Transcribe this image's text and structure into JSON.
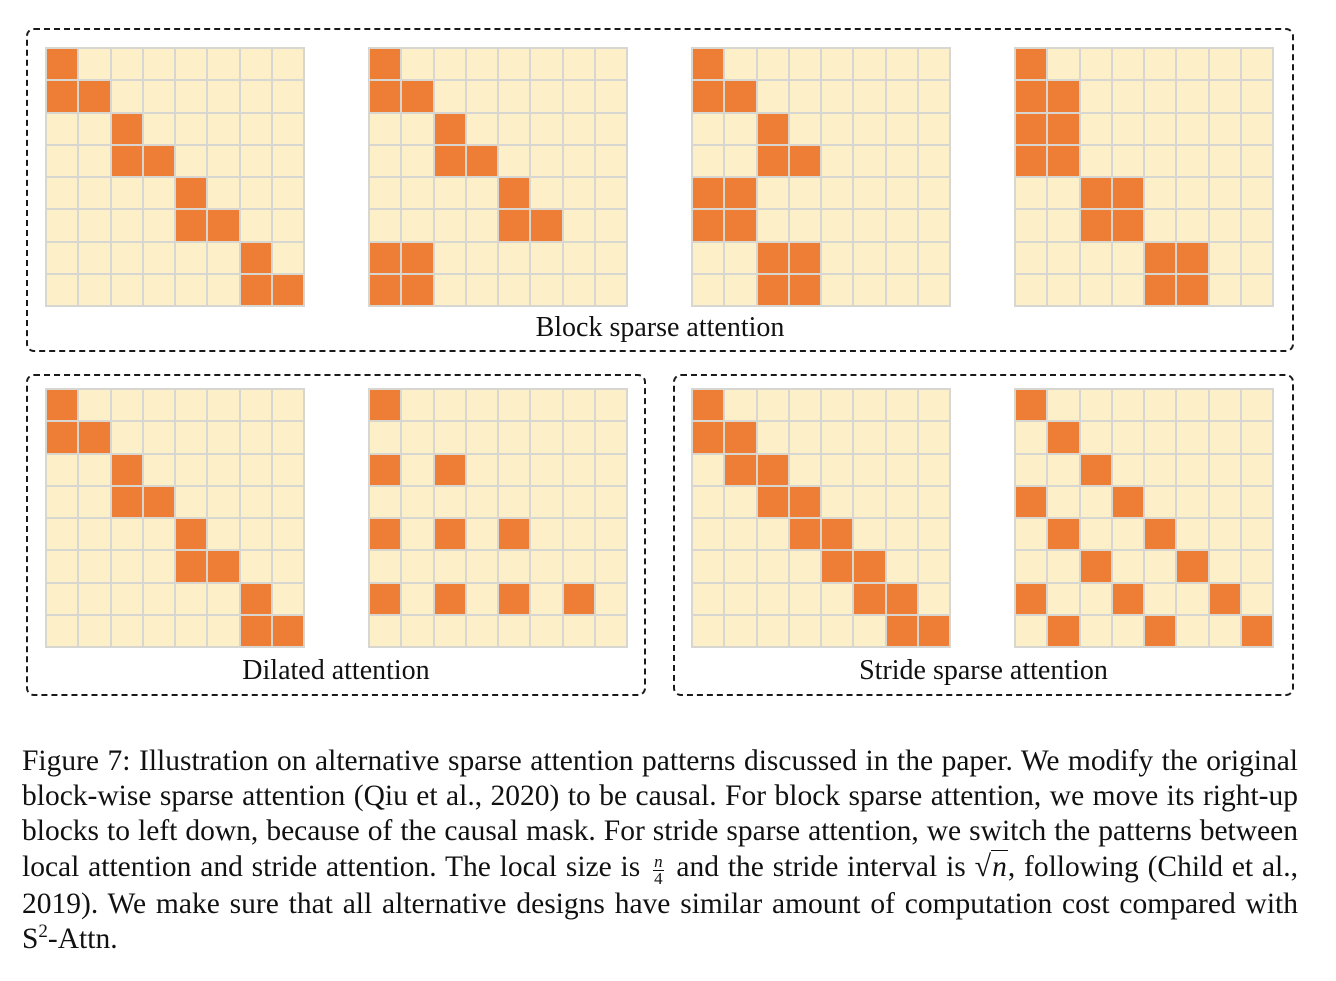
{
  "colors": {
    "active": "#ee7d35",
    "inactive": "#fdf0c9",
    "grid_line": "#d8d6d1"
  },
  "panels": {
    "block": {
      "title": "Block sparse attention",
      "grids": [
        [
          [
            0,
            0
          ],
          [
            1,
            0
          ],
          [
            1,
            1
          ],
          [
            2,
            2
          ],
          [
            3,
            2
          ],
          [
            3,
            3
          ],
          [
            4,
            4
          ],
          [
            5,
            4
          ],
          [
            5,
            5
          ],
          [
            6,
            6
          ],
          [
            7,
            6
          ],
          [
            7,
            7
          ]
        ],
        [
          [
            0,
            0
          ],
          [
            1,
            0
          ],
          [
            1,
            1
          ],
          [
            2,
            2
          ],
          [
            3,
            2
          ],
          [
            3,
            3
          ],
          [
            4,
            4
          ],
          [
            5,
            4
          ],
          [
            5,
            5
          ],
          [
            6,
            0
          ],
          [
            6,
            1
          ],
          [
            7,
            0
          ],
          [
            7,
            1
          ]
        ],
        [
          [
            0,
            0
          ],
          [
            1,
            0
          ],
          [
            1,
            1
          ],
          [
            2,
            2
          ],
          [
            3,
            2
          ],
          [
            3,
            3
          ],
          [
            4,
            0
          ],
          [
            4,
            1
          ],
          [
            5,
            0
          ],
          [
            5,
            1
          ],
          [
            6,
            2
          ],
          [
            6,
            3
          ],
          [
            7,
            2
          ],
          [
            7,
            3
          ]
        ],
        [
          [
            0,
            0
          ],
          [
            1,
            0
          ],
          [
            1,
            1
          ],
          [
            2,
            0
          ],
          [
            2,
            1
          ],
          [
            3,
            0
          ],
          [
            3,
            1
          ],
          [
            4,
            2
          ],
          [
            4,
            3
          ],
          [
            5,
            2
          ],
          [
            5,
            3
          ],
          [
            6,
            4
          ],
          [
            6,
            5
          ],
          [
            7,
            4
          ],
          [
            7,
            5
          ]
        ]
      ]
    },
    "dilated": {
      "title": "Dilated attention",
      "grids": [
        [
          [
            0,
            0
          ],
          [
            1,
            0
          ],
          [
            1,
            1
          ],
          [
            2,
            2
          ],
          [
            3,
            2
          ],
          [
            3,
            3
          ],
          [
            4,
            4
          ],
          [
            5,
            4
          ],
          [
            5,
            5
          ],
          [
            6,
            6
          ],
          [
            7,
            6
          ],
          [
            7,
            7
          ]
        ],
        [
          [
            0,
            0
          ],
          [
            2,
            0
          ],
          [
            2,
            2
          ],
          [
            4,
            0
          ],
          [
            4,
            2
          ],
          [
            4,
            4
          ],
          [
            6,
            0
          ],
          [
            6,
            2
          ],
          [
            6,
            4
          ],
          [
            6,
            6
          ]
        ]
      ]
    },
    "stride": {
      "title": "Stride sparse attention",
      "grids": [
        [
          [
            0,
            0
          ],
          [
            1,
            0
          ],
          [
            1,
            1
          ],
          [
            2,
            1
          ],
          [
            2,
            2
          ],
          [
            3,
            2
          ],
          [
            3,
            3
          ],
          [
            4,
            3
          ],
          [
            4,
            4
          ],
          [
            5,
            4
          ],
          [
            5,
            5
          ],
          [
            6,
            5
          ],
          [
            6,
            6
          ],
          [
            7,
            6
          ],
          [
            7,
            7
          ]
        ],
        [
          [
            0,
            0
          ],
          [
            1,
            1
          ],
          [
            2,
            2
          ],
          [
            3,
            0
          ],
          [
            3,
            3
          ],
          [
            4,
            1
          ],
          [
            4,
            4
          ],
          [
            5,
            2
          ],
          [
            5,
            5
          ],
          [
            6,
            0
          ],
          [
            6,
            3
          ],
          [
            6,
            6
          ],
          [
            7,
            1
          ],
          [
            7,
            4
          ],
          [
            7,
            7
          ]
        ]
      ]
    }
  },
  "caption": {
    "label": "Figure 7:",
    "text_1": "Illustration on alternative sparse attention patterns discussed in the paper. We modify the original block-wise sparse attention (Qiu et al., 2020) to be causal. For block sparse attention, we move its right-up blocks to left down, because of the causal mask. For stride sparse attention, we switch the patterns between local attention and stride attention. The local size is",
    "frac_num": "n",
    "frac_den": "4",
    "text_2": "and the stride interval is",
    "sqrt_symbol": "√",
    "sqrt_arg": "n",
    "text_3": ", following (Child et al., 2019). We make sure that all alternative designs have similar amount of computation cost compared with S",
    "superscript": "2",
    "text_4": "-Attn."
  }
}
